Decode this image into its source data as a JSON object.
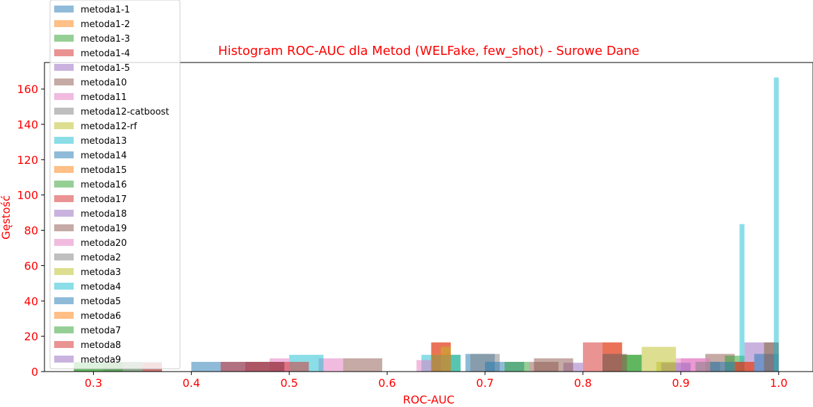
{
  "chart_data": {
    "type": "histogram",
    "title": "Histogram ROC-AUC dla Metod (WELFake, few_shot) - Surowe Dane",
    "xlabel": "ROC-AUC",
    "ylabel": "Gęstość",
    "xlim": [
      0.25,
      1.035
    ],
    "ylim": [
      0,
      175
    ],
    "xticks": [
      "0.3",
      "0.4",
      "0.5",
      "0.6",
      "0.7",
      "0.8",
      "0.9",
      "1.0"
    ],
    "yticks": [
      "0",
      "20",
      "40",
      "60",
      "80",
      "100",
      "120",
      "140",
      "160"
    ],
    "grid": false,
    "legend_position": "upper-left",
    "bar_alpha": 0.5,
    "series": [
      {
        "name": "metoda1-1",
        "color": "#1f77b4",
        "bins": [
          [
            0.4,
            0.44,
            5.5
          ],
          [
            0.68,
            0.71,
            10
          ]
        ]
      },
      {
        "name": "metoda1-2",
        "color": "#ff7f0e",
        "bins": [
          [
            0.645,
            0.665,
            16.5
          ],
          [
            0.82,
            0.84,
            16.5
          ]
        ]
      },
      {
        "name": "metoda1-3",
        "color": "#2ca02c",
        "bins": [
          [
            0.28,
            0.35,
            5.5
          ],
          [
            0.645,
            0.675,
            9.5
          ],
          [
            0.84,
            0.86,
            9.5
          ]
        ]
      },
      {
        "name": "metoda1-4",
        "color": "#d62728",
        "bins": [
          [
            0.645,
            0.665,
            16.5
          ],
          [
            0.8,
            0.82,
            16.5
          ],
          [
            0.82,
            0.84,
            16.5
          ]
        ]
      },
      {
        "name": "metoda1-5",
        "color": "#9467bd",
        "bins": [
          [
            0.78,
            0.8,
            5
          ],
          [
            0.965,
            0.985,
            16.5
          ]
        ]
      },
      {
        "name": "metoda10",
        "color": "#8c564b",
        "bins": [
          [
            0.555,
            0.595,
            7.5
          ],
          [
            0.75,
            0.79,
            7.5
          ],
          [
            0.925,
            0.955,
            10
          ]
        ]
      },
      {
        "name": "metoda11",
        "color": "#e377c2",
        "bins": [
          [
            0.48,
            0.5,
            7.5
          ],
          [
            0.53,
            0.555,
            7.5
          ],
          [
            0.9,
            0.925,
            7.5
          ]
        ]
      },
      {
        "name": "metoda12-catboost",
        "color": "#7f7f7f",
        "bins": [
          [
            0.685,
            0.715,
            10
          ],
          [
            0.82,
            0.84,
            10
          ],
          [
            0.985,
            1.0,
            16.5
          ]
        ]
      },
      {
        "name": "metoda12-rf",
        "color": "#bcbd22",
        "bins": [
          [
            0.655,
            0.665,
            14
          ],
          [
            0.86,
            0.875,
            14
          ],
          [
            0.875,
            0.895,
            14
          ]
        ]
      },
      {
        "name": "metoda13",
        "color": "#17becf",
        "bins": [
          [
            0.5,
            0.535,
            9.5
          ],
          [
            0.635,
            0.675,
            9.5
          ]
        ]
      },
      {
        "name": "metoda14",
        "color": "#1f77b4",
        "bins": [
          [
            0.7,
            0.74,
            5.5
          ],
          [
            0.975,
            1.0,
            10
          ]
        ]
      },
      {
        "name": "metoda15",
        "color": "#ff7f0e",
        "bins": [
          [
            0.645,
            0.665,
            10
          ]
        ]
      },
      {
        "name": "metoda16",
        "color": "#2ca02c",
        "bins": [
          [
            0.72,
            0.745,
            5.5
          ],
          [
            0.84,
            0.86,
            9.5
          ],
          [
            0.945,
            0.965,
            9
          ]
        ]
      },
      {
        "name": "metoda17",
        "color": "#d62728",
        "bins": [
          [
            0.455,
            0.495,
            5.5
          ],
          [
            0.495,
            0.52,
            5.5
          ]
        ]
      },
      {
        "name": "metoda18",
        "color": "#9467bd",
        "bins": [
          [
            0.88,
            0.895,
            5
          ]
        ]
      },
      {
        "name": "metoda19",
        "color": "#8c564b",
        "bins": [
          [
            0.745,
            0.775,
            5.5
          ],
          [
            0.82,
            0.845,
            10
          ],
          [
            0.985,
            1.0,
            16.5
          ]
        ]
      },
      {
        "name": "metoda20",
        "color": "#e377c2",
        "bins": [
          [
            0.63,
            0.645,
            6.5
          ],
          [
            0.895,
            0.93,
            7.5
          ]
        ]
      },
      {
        "name": "metoda2",
        "color": "#7f7f7f",
        "bins": [
          [
            0.31,
            0.37,
            5.5
          ],
          [
            0.915,
            0.94,
            5.5
          ]
        ]
      },
      {
        "name": "metoda3",
        "color": "#bcbd22",
        "bins": [
          [
            0.875,
            0.895,
            5.5
          ]
        ]
      },
      {
        "name": "metoda4",
        "color": "#17becf",
        "bins": [
          [
            0.96,
            0.965,
            83.5
          ],
          [
            0.995,
            1.0,
            166.5
          ]
        ]
      },
      {
        "name": "metoda5",
        "color": "#1f77b4",
        "bins": [
          [
            0.44,
            0.495,
            5.5
          ],
          [
            0.93,
            0.965,
            5.5
          ]
        ]
      },
      {
        "name": "metoda6",
        "color": "#ff7f0e",
        "bins": [
          [
            0.955,
            0.975,
            5.5
          ]
        ]
      },
      {
        "name": "metoda7",
        "color": "#2ca02c",
        "bins": [
          [
            0.28,
            0.33,
            5
          ]
        ]
      },
      {
        "name": "metoda8",
        "color": "#d62728",
        "bins": [
          [
            0.35,
            0.37,
            5
          ],
          [
            0.43,
            0.455,
            5.5
          ],
          [
            0.455,
            0.495,
            5.5
          ],
          [
            0.955,
            0.975,
            5.5
          ]
        ]
      },
      {
        "name": "metoda9",
        "color": "#9467bd",
        "bins": [
          [
            0.895,
            0.91,
            5
          ]
        ]
      }
    ]
  }
}
